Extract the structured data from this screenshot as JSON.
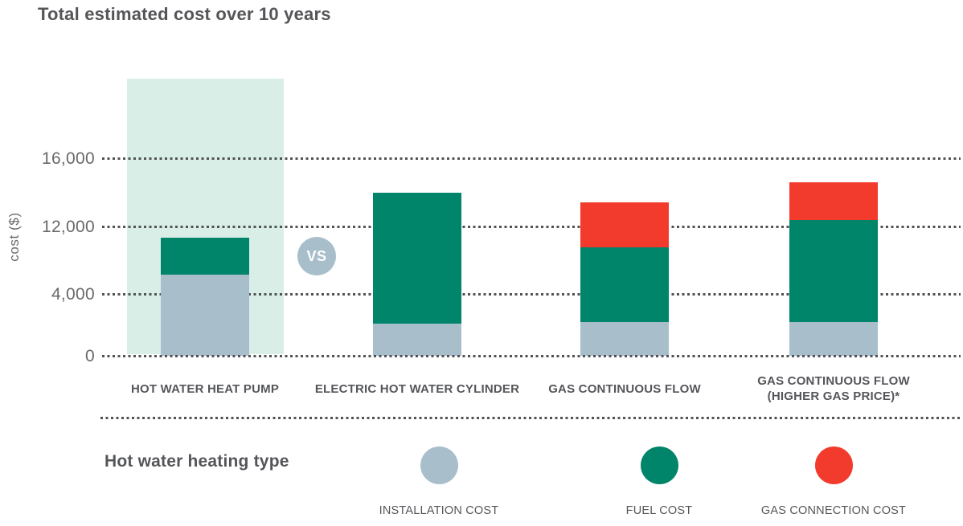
{
  "title": "Total estimated cost over 10 years",
  "vs_badge": "VS",
  "legend": {
    "heading": "Hot water heating type",
    "items": [
      {
        "name": "installation-cost",
        "label": "INSTALLATION COST",
        "color": "#a8bfcb"
      },
      {
        "name": "fuel-cost",
        "label": "FUEL COST",
        "color": "#00846a"
      },
      {
        "name": "gas-connection-cost",
        "label": "GAS CONNECTION COST",
        "color": "#f23b2c"
      }
    ]
  },
  "chart_data": {
    "type": "bar",
    "stacked": true,
    "title": "Total estimated cost over 10 years",
    "ylabel": "cost ($)",
    "yticks": [
      {
        "value": 0,
        "label": "0"
      },
      {
        "value": 4000,
        "label": "4,000"
      },
      {
        "value": 12000,
        "label": "12,000"
      },
      {
        "value": 16000,
        "label": "16,000"
      }
    ],
    "axis_note": "y axis is non-linear: tick values 0, 4,000, 12,000, 16,000 are drawn evenly spaced",
    "grid": "dotted horizontal gridlines",
    "legend_position": "bottom",
    "categories": [
      "HOT WATER HEAT PUMP",
      "ELECTRIC HOT WATER CYLINDER",
      "GAS CONTINUOUS FLOW",
      "GAS CONTINUOUS FLOW\n(HIGHER GAS PRICE)*"
    ],
    "series": [
      {
        "name": "INSTALLATION COST",
        "color": "#a8bfcb",
        "values": [
          6300,
          2100,
          2200,
          2200
        ]
      },
      {
        "name": "FUEL COST",
        "color": "#00846a",
        "values": [
          4400,
          11900,
          7300,
          10200
        ]
      },
      {
        "name": "GAS CONNECTION COST",
        "color": "#f23b2c",
        "values": [
          0,
          0,
          3900,
          2200
        ]
      }
    ],
    "totals_estimated": [
      10700,
      14000,
      13400,
      14600
    ],
    "highlighted_category_index": 0,
    "highlight_color": "#d8eee6",
    "vs_between": [
      "HOT WATER HEAT PUMP",
      "ELECTRIC HOT WATER CYLINDER"
    ]
  },
  "colors": {
    "background": "#ffffff",
    "grid_dots": "#515256",
    "text_primary": "#55565a",
    "text_axis": "#68696c",
    "vs_badge_bg": "#a8bfcb",
    "vs_badge_text": "#ffffff"
  }
}
